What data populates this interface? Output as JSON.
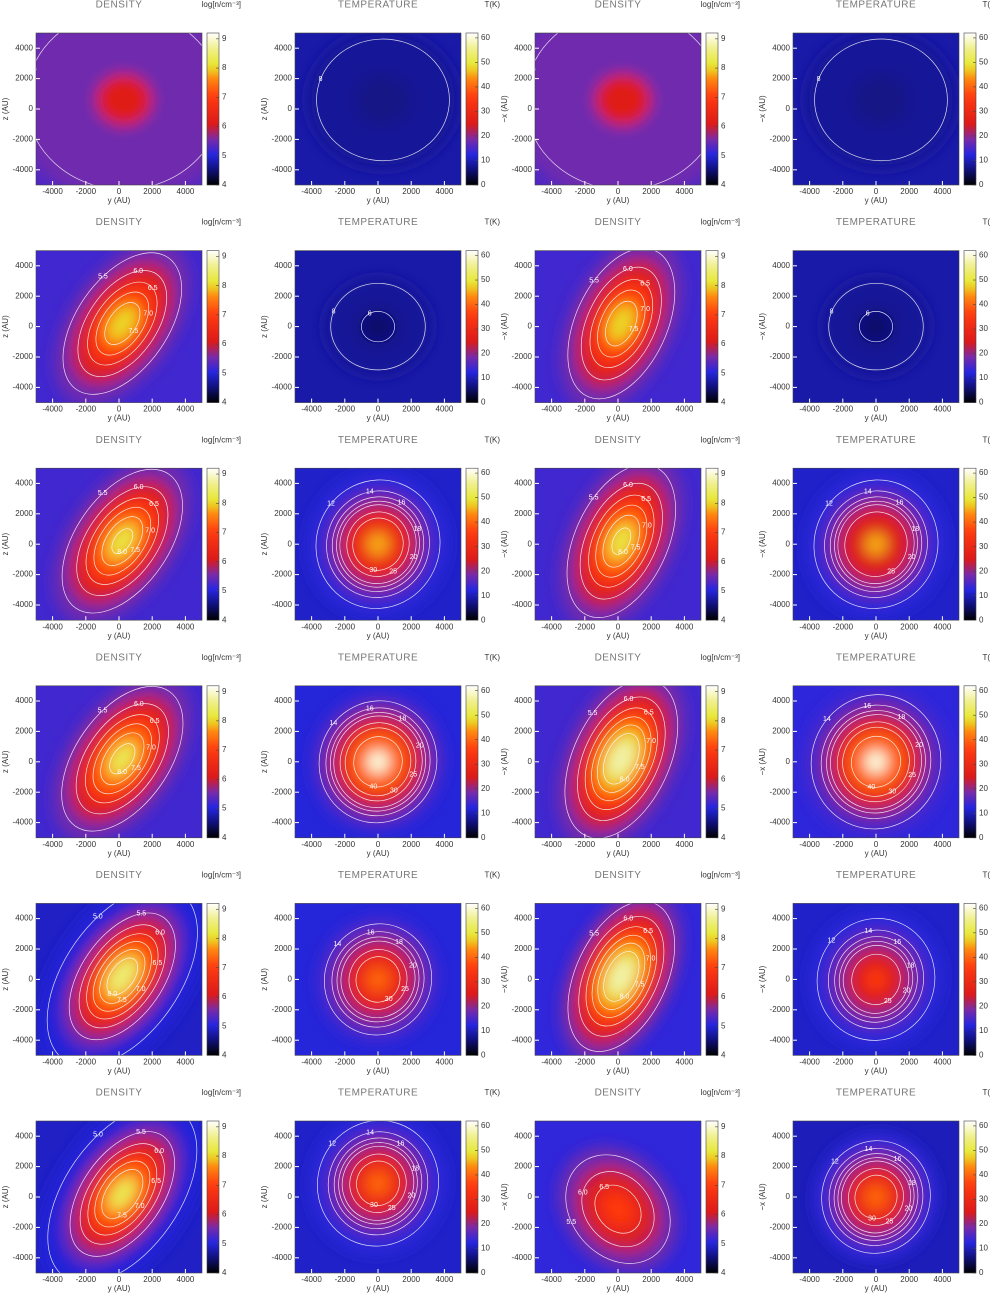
{
  "chart_data": [
    {
      "type": "heatmap",
      "title": "DENSITY",
      "colorbar_label": "log[n/cm⁻³]",
      "xlabel": "y (AU)",
      "ylabel": "z (AU)",
      "xlim": [
        -5000,
        5000
      ],
      "ylim": [
        -5000,
        5000
      ],
      "xticks": [
        -4000,
        -2000,
        0,
        2000,
        4000
      ],
      "yticks": [
        -4000,
        -2000,
        0,
        2000,
        4000
      ],
      "clim": [
        4,
        9.2
      ],
      "cticks": [
        4,
        5,
        6,
        7,
        8,
        9
      ],
      "background": 5.3,
      "peak": 6.2,
      "contours": [
        5.5
      ]
    },
    {
      "type": "heatmap",
      "title": "TEMPERATURE",
      "colorbar_label": "T(K)",
      "xlabel": "y (AU)",
      "ylabel": "z (AU)",
      "xlim": [
        -5000,
        5000
      ],
      "ylim": [
        -5000,
        5000
      ],
      "xticks": [
        -4000,
        -2000,
        0,
        2000,
        4000
      ],
      "yticks": [
        -4000,
        -2000,
        0,
        2000,
        4000
      ],
      "clim": [
        0,
        62
      ],
      "cticks": [
        0,
        10,
        20,
        30,
        40,
        50,
        60
      ],
      "background": 9,
      "peak": 7,
      "contours": [
        8
      ]
    },
    {
      "type": "heatmap",
      "title": "DENSITY",
      "colorbar_label": "log[n/cm⁻³]",
      "xlabel": "y (AU)",
      "ylabel": "−x (AU)",
      "xlim": [
        -5000,
        5000
      ],
      "ylim": [
        -5000,
        5000
      ],
      "xticks": [
        -4000,
        -2000,
        0,
        2000,
        4000
      ],
      "yticks": [
        -4000,
        -2000,
        0,
        2000,
        4000
      ],
      "clim": [
        4,
        9.2
      ],
      "cticks": [
        4,
        5,
        6,
        7,
        8,
        9
      ],
      "background": 5.3,
      "peak": 6.2,
      "contours": [
        5.5
      ]
    },
    {
      "type": "heatmap",
      "title": "TEMPERATURE",
      "colorbar_label": "T(K)",
      "xlabel": "y (AU)",
      "ylabel": "−x (AU)",
      "xlim": [
        -5000,
        5000
      ],
      "ylim": [
        -5000,
        5000
      ],
      "xticks": [
        -4000,
        -2000,
        0,
        2000,
        4000
      ],
      "yticks": [
        -4000,
        -2000,
        0,
        2000,
        4000
      ],
      "clim": [
        0,
        62
      ],
      "cticks": [
        0,
        10,
        20,
        30,
        40,
        50,
        60
      ],
      "background": 9,
      "peak": 7,
      "contours": [
        8
      ]
    },
    {
      "type": "heatmap",
      "title": "DENSITY",
      "colorbar_label": "log[n/cm⁻³]",
      "xlabel": "y (AU)",
      "ylabel": "z (AU)",
      "xlim": [
        -5000,
        5000
      ],
      "ylim": [
        -5000,
        5000
      ],
      "xticks": [
        -4000,
        -2000,
        0,
        2000,
        4000
      ],
      "yticks": [
        -4000,
        -2000,
        0,
        2000,
        4000
      ],
      "clim": [
        4,
        9.2
      ],
      "cticks": [
        4,
        5,
        6,
        7,
        8,
        9
      ],
      "background": 5.2,
      "peak": 8.0,
      "contours": [
        5.5,
        {
          "value": 6,
          "label": "6.0"
        },
        6.5,
        {
          "value": 7,
          "label": "7.0"
        },
        7.5
      ]
    },
    {
      "type": "heatmap",
      "title": "TEMPERATURE",
      "colorbar_label": "T(K)",
      "xlabel": "y (AU)",
      "ylabel": "z (AU)",
      "xlim": [
        -5000,
        5000
      ],
      "ylim": [
        -5000,
        5000
      ],
      "xticks": [
        -4000,
        -2000,
        0,
        2000,
        4000
      ],
      "yticks": [
        -4000,
        -2000,
        0,
        2000,
        4000
      ],
      "clim": [
        0,
        62
      ],
      "cticks": [
        0,
        10,
        20,
        30,
        40,
        50,
        60
      ],
      "background": 9,
      "peak": 5.5,
      "contours": [
        8,
        6
      ]
    },
    {
      "type": "heatmap",
      "title": "DENSITY",
      "colorbar_label": "log[n/cm⁻³]",
      "xlabel": "y (AU)",
      "ylabel": "−x (AU)",
      "xlim": [
        -5000,
        5000
      ],
      "ylim": [
        -5000,
        5000
      ],
      "xticks": [
        -4000,
        -2000,
        0,
        2000,
        4000
      ],
      "yticks": [
        -4000,
        -2000,
        0,
        2000,
        4000
      ],
      "clim": [
        4,
        9.2
      ],
      "cticks": [
        4,
        5,
        6,
        7,
        8,
        9
      ],
      "background": 5.2,
      "peak": 8.0,
      "contours": [
        5.5,
        {
          "value": 6,
          "label": "6.0"
        },
        6.5,
        {
          "value": 7,
          "label": "7.0"
        },
        7.5
      ]
    },
    {
      "type": "heatmap",
      "title": "TEMPERATURE",
      "colorbar_label": "T(K)",
      "xlabel": "y (AU)",
      "ylabel": "−x (AU)",
      "xlim": [
        -5000,
        5000
      ],
      "ylim": [
        -5000,
        5000
      ],
      "xticks": [
        -4000,
        -2000,
        0,
        2000,
        4000
      ],
      "yticks": [
        -4000,
        -2000,
        0,
        2000,
        4000
      ],
      "clim": [
        0,
        62
      ],
      "cticks": [
        0,
        10,
        20,
        30,
        40,
        50,
        60
      ],
      "background": 9,
      "peak": 5.5,
      "contours": [
        8,
        6
      ]
    },
    {
      "type": "heatmap",
      "title": "DENSITY",
      "colorbar_label": "log[n/cm⁻³]",
      "xlabel": "y (AU)",
      "ylabel": "z (AU)",
      "xlim": [
        -5000,
        5000
      ],
      "ylim": [
        -5000,
        5000
      ],
      "xticks": [
        -4000,
        -2000,
        0,
        2000,
        4000
      ],
      "yticks": [
        -4000,
        -2000,
        0,
        2000,
        4000
      ],
      "clim": [
        4,
        9.2
      ],
      "cticks": [
        4,
        5,
        6,
        7,
        8,
        9
      ],
      "background": 5.2,
      "peak": 8.2,
      "contours": [
        5.5,
        {
          "value": 6,
          "label": "6.0"
        },
        6.5,
        {
          "value": 7,
          "label": "7.0"
        },
        7.5,
        {
          "value": 8,
          "label": "8.0"
        }
      ]
    },
    {
      "type": "heatmap",
      "title": "TEMPERATURE",
      "colorbar_label": "T(K)",
      "xlabel": "y (AU)",
      "ylabel": "z (AU)",
      "xlim": [
        -5000,
        5000
      ],
      "ylim": [
        -5000,
        5000
      ],
      "xticks": [
        -4000,
        -2000,
        0,
        2000,
        4000
      ],
      "yticks": [
        -4000,
        -2000,
        0,
        2000,
        4000
      ],
      "clim": [
        0,
        62
      ],
      "cticks": [
        0,
        10,
        20,
        30,
        40,
        50,
        60
      ],
      "background": 11,
      "peak": 45,
      "contours": [
        12,
        14,
        16,
        18,
        20,
        25,
        30
      ]
    },
    {
      "type": "heatmap",
      "title": "DENSITY",
      "colorbar_label": "log[n/cm⁻³]",
      "xlabel": "y (AU)",
      "ylabel": "−x (AU)",
      "xlim": [
        -5000,
        5000
      ],
      "ylim": [
        -5000,
        5000
      ],
      "xticks": [
        -4000,
        -2000,
        0,
        2000,
        4000
      ],
      "yticks": [
        -4000,
        -2000,
        0,
        2000,
        4000
      ],
      "clim": [
        4,
        9.2
      ],
      "cticks": [
        4,
        5,
        6,
        7,
        8,
        9
      ],
      "background": 5.2,
      "peak": 8.2,
      "contours": [
        5.5,
        {
          "value": 6,
          "label": "6.0"
        },
        6.5,
        {
          "value": 7,
          "label": "7.0"
        },
        7.5,
        {
          "value": 8,
          "label": "8.0"
        }
      ]
    },
    {
      "type": "heatmap",
      "title": "TEMPERATURE",
      "colorbar_label": "T(K)",
      "xlabel": "y (AU)",
      "ylabel": "−x (AU)",
      "xlim": [
        -5000,
        5000
      ],
      "ylim": [
        -5000,
        5000
      ],
      "xticks": [
        -4000,
        -2000,
        0,
        2000,
        4000
      ],
      "yticks": [
        -4000,
        -2000,
        0,
        2000,
        4000
      ],
      "clim": [
        0,
        62
      ],
      "cticks": [
        0,
        10,
        20,
        30,
        40,
        50,
        60
      ],
      "background": 11,
      "peak": 45,
      "contours": [
        12,
        14,
        16,
        18,
        20,
        25
      ]
    },
    {
      "type": "heatmap",
      "title": "DENSITY",
      "colorbar_label": "log[n/cm⁻³]",
      "xlabel": "y (AU)",
      "ylabel": "z (AU)",
      "xlim": [
        -5000,
        5000
      ],
      "ylim": [
        -5000,
        5000
      ],
      "xticks": [
        -4000,
        -2000,
        0,
        2000,
        4000
      ],
      "yticks": [
        -4000,
        -2000,
        0,
        2000,
        4000
      ],
      "clim": [
        4,
        9.2
      ],
      "cticks": [
        4,
        5,
        6,
        7,
        8,
        9
      ],
      "background": 5.2,
      "peak": 8.3,
      "contours": [
        5.5,
        {
          "value": 6,
          "label": "6.0"
        },
        6.5,
        {
          "value": 7,
          "label": "7.0"
        },
        7.5,
        {
          "value": 8,
          "label": "8.0"
        }
      ]
    },
    {
      "type": "heatmap",
      "title": "TEMPERATURE",
      "colorbar_label": "T(K)",
      "xlabel": "y (AU)",
      "ylabel": "z (AU)",
      "xlim": [
        -5000,
        5000
      ],
      "ylim": [
        -5000,
        5000
      ],
      "xticks": [
        -4000,
        -2000,
        0,
        2000,
        4000
      ],
      "yticks": [
        -4000,
        -2000,
        0,
        2000,
        4000
      ],
      "clim": [
        0,
        62
      ],
      "cticks": [
        0,
        10,
        20,
        30,
        40,
        50,
        60
      ],
      "background": 12,
      "peak": 60,
      "contours": [
        14,
        16,
        18,
        20,
        25,
        30,
        40
      ]
    },
    {
      "type": "heatmap",
      "title": "DENSITY",
      "colorbar_label": "log[n/cm⁻³]",
      "xlabel": "y (AU)",
      "ylabel": "−x (AU)",
      "xlim": [
        -5000,
        5000
      ],
      "ylim": [
        -5000,
        5000
      ],
      "xticks": [
        -4000,
        -2000,
        0,
        2000,
        4000
      ],
      "yticks": [
        -4000,
        -2000,
        0,
        2000,
        4000
      ],
      "clim": [
        4,
        9.2
      ],
      "cticks": [
        4,
        5,
        6,
        7,
        8,
        9
      ],
      "background": 5.2,
      "peak": 8.8,
      "contours": [
        5.5,
        {
          "value": 6,
          "label": "6.0"
        },
        6.5,
        {
          "value": 7,
          "label": "7.0"
        },
        7.5,
        {
          "value": 8,
          "label": "8.0"
        }
      ]
    },
    {
      "type": "heatmap",
      "title": "TEMPERATURE",
      "colorbar_label": "T(K)",
      "xlabel": "y (AU)",
      "ylabel": "−x (AU)",
      "xlim": [
        -5000,
        5000
      ],
      "ylim": [
        -5000,
        5000
      ],
      "xticks": [
        -4000,
        -2000,
        0,
        2000,
        4000
      ],
      "yticks": [
        -4000,
        -2000,
        0,
        2000,
        4000
      ],
      "clim": [
        0,
        62
      ],
      "cticks": [
        0,
        10,
        20,
        30,
        40,
        50,
        60
      ],
      "background": 13,
      "peak": 60,
      "contours": [
        14,
        16,
        18,
        20,
        25,
        30,
        40
      ]
    },
    {
      "type": "heatmap",
      "title": "DENSITY",
      "colorbar_label": "log[n/cm⁻³]",
      "xlabel": "y (AU)",
      "ylabel": "z (AU)",
      "xlim": [
        -5000,
        5000
      ],
      "ylim": [
        -5000,
        5000
      ],
      "xticks": [
        -4000,
        -2000,
        0,
        2000,
        4000
      ],
      "yticks": [
        -4000,
        -2000,
        0,
        2000,
        4000
      ],
      "clim": [
        4,
        9.2
      ],
      "cticks": [
        4,
        5,
        6,
        7,
        8,
        9
      ],
      "background": 4.9,
      "peak": 8.5,
      "contours": [
        {
          "value": 5,
          "label": "5.0"
        },
        5.5,
        {
          "value": 6,
          "label": "6.0"
        },
        6.5,
        {
          "value": 7,
          "label": "7.0"
        },
        7.5,
        {
          "value": 8,
          "label": "8.0"
        }
      ]
    },
    {
      "type": "heatmap",
      "title": "TEMPERATURE",
      "colorbar_label": "T(K)",
      "xlabel": "y (AU)",
      "ylabel": "z (AU)",
      "xlim": [
        -5000,
        5000
      ],
      "ylim": [
        -5000,
        5000
      ],
      "xticks": [
        -4000,
        -2000,
        0,
        2000,
        4000
      ],
      "yticks": [
        -4000,
        -2000,
        0,
        2000,
        4000
      ],
      "clim": [
        0,
        62
      ],
      "cticks": [
        0,
        10,
        20,
        30,
        40,
        50,
        60
      ],
      "background": 12,
      "peak": 40,
      "contours": [
        14,
        16,
        18,
        20,
        25,
        30
      ]
    },
    {
      "type": "heatmap",
      "title": "DENSITY",
      "colorbar_label": "log[n/cm⁻³]",
      "xlabel": "y (AU)",
      "ylabel": "−x (AU)",
      "xlim": [
        -5000,
        5000
      ],
      "ylim": [
        -5000,
        5000
      ],
      "xticks": [
        -4000,
        -2000,
        0,
        2000,
        4000
      ],
      "yticks": [
        -4000,
        -2000,
        0,
        2000,
        4000
      ],
      "clim": [
        4,
        9.2
      ],
      "cticks": [
        4,
        5,
        6,
        7,
        8,
        9
      ],
      "background": 5.1,
      "peak": 8.8,
      "contours": [
        5.5,
        {
          "value": 6,
          "label": "6.0"
        },
        6.5,
        {
          "value": 7,
          "label": "7.0"
        },
        7.5,
        {
          "value": 8,
          "label": "8.0"
        }
      ]
    },
    {
      "type": "heatmap",
      "title": "TEMPERATURE",
      "colorbar_label": "T(K)",
      "xlabel": "y (AU)",
      "ylabel": "−x (AU)",
      "xlim": [
        -5000,
        5000
      ],
      "ylim": [
        -5000,
        5000
      ],
      "xticks": [
        -4000,
        -2000,
        0,
        2000,
        4000
      ],
      "yticks": [
        -4000,
        -2000,
        0,
        2000,
        4000
      ],
      "clim": [
        0,
        62
      ],
      "cticks": [
        0,
        10,
        20,
        30,
        40,
        50,
        60
      ],
      "background": 11,
      "peak": 35,
      "contours": [
        12,
        14,
        16,
        18,
        20,
        25
      ]
    },
    {
      "type": "heatmap",
      "title": "DENSITY",
      "colorbar_label": "log[n/cm⁻³]",
      "xlabel": "y (AU)",
      "ylabel": "z (AU)",
      "xlim": [
        -5000,
        5000
      ],
      "ylim": [
        -5000,
        5000
      ],
      "xticks": [
        -4000,
        -2000,
        0,
        2000,
        4000
      ],
      "yticks": [
        -4000,
        -2000,
        0,
        2000,
        4000
      ],
      "clim": [
        4,
        9.2
      ],
      "cticks": [
        4,
        5,
        6,
        7,
        8,
        9
      ],
      "background": 4.9,
      "peak": 8.3,
      "contours": [
        {
          "value": 5,
          "label": "5.0"
        },
        5.5,
        {
          "value": 6,
          "label": "6.0"
        },
        6.5,
        {
          "value": 7,
          "label": "7.0"
        },
        7.5
      ]
    },
    {
      "type": "heatmap",
      "title": "TEMPERATURE",
      "colorbar_label": "T(K)",
      "xlabel": "y (AU)",
      "ylabel": "z (AU)",
      "xlim": [
        -5000,
        5000
      ],
      "ylim": [
        -5000,
        5000
      ],
      "xticks": [
        -4000,
        -2000,
        0,
        2000,
        4000
      ],
      "yticks": [
        -4000,
        -2000,
        0,
        2000,
        4000
      ],
      "clim": [
        0,
        62
      ],
      "cticks": [
        0,
        10,
        20,
        30,
        40,
        50,
        60
      ],
      "background": 11,
      "peak": 40,
      "contours": [
        12,
        14,
        16,
        18,
        20,
        25,
        30
      ]
    },
    {
      "type": "heatmap",
      "title": "DENSITY",
      "colorbar_label": "log[n/cm⁻³]",
      "xlabel": "y (AU)",
      "ylabel": "−x (AU)",
      "xlim": [
        -5000,
        5000
      ],
      "ylim": [
        -5000,
        5000
      ],
      "xticks": [
        -4000,
        -2000,
        0,
        2000,
        4000
      ],
      "yticks": [
        -4000,
        -2000,
        0,
        2000,
        4000
      ],
      "clim": [
        4,
        9.2
      ],
      "cticks": [
        4,
        5,
        6,
        7,
        8,
        9
      ],
      "background": 5.1,
      "peak": 7.0,
      "contours": [
        5.5,
        {
          "value": 6,
          "label": "6.0"
        },
        6.5
      ]
    },
    {
      "type": "heatmap",
      "title": "TEMPERATURE",
      "colorbar_label": "T(K)",
      "xlabel": "y (AU)",
      "ylabel": "−x (AU)",
      "xlim": [
        -5000,
        5000
      ],
      "ylim": [
        -5000,
        5000
      ],
      "xticks": [
        -4000,
        -2000,
        0,
        2000,
        4000
      ],
      "yticks": [
        -4000,
        -2000,
        0,
        2000,
        4000
      ],
      "clim": [
        0,
        62
      ],
      "cticks": [
        0,
        10,
        20,
        30,
        40,
        50,
        60
      ],
      "background": 10,
      "peak": 40,
      "contours": [
        12,
        14,
        16,
        18,
        20,
        25,
        30
      ]
    }
  ]
}
